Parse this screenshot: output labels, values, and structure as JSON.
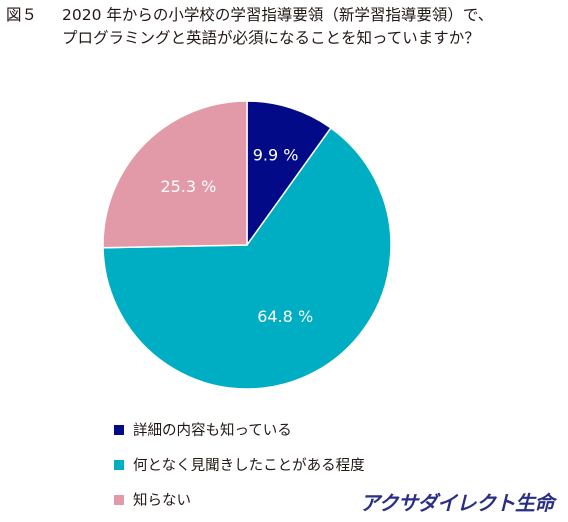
{
  "title": {
    "figure_label": "図５",
    "line1": "2020 年からの小学校の学習指導要領（新学習指導要領）で、",
    "line2": "プログラミングと英語が必須になることを知っていますか？"
  },
  "chart_data": {
    "type": "pie",
    "title": "",
    "unit": "%",
    "slices": [
      {
        "label": "詳細の内容も知っている",
        "value": 9.9,
        "display": "9.9 %",
        "color": "#020a87",
        "text_color": "#ffffff"
      },
      {
        "label": "何となく見聞きしたことがある程度",
        "value": 64.8,
        "display": "64.8 %",
        "color": "#00aec4",
        "text_color": "#ffffff"
      },
      {
        "label": "知らない",
        "value": 25.3,
        "display": "25.3 %",
        "color": "#e29aa9",
        "text_color": "#ffffff"
      }
    ],
    "legend_position": "bottom-left"
  },
  "brand": "アクサダイレクト生命"
}
